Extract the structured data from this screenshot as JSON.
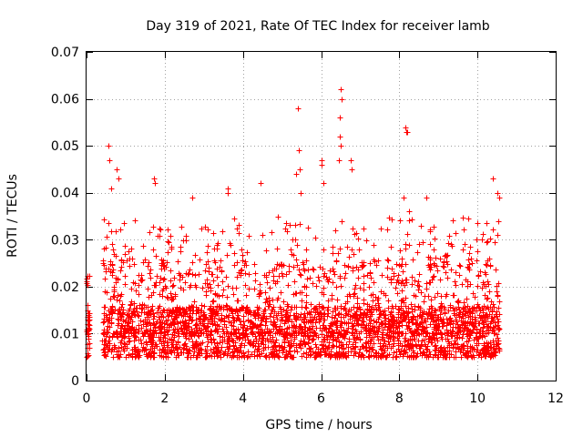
{
  "chart_data": {
    "type": "scatter",
    "title": "Day 319 of 2021, Rate Of TEC Index for receiver lamb",
    "xlabel": "GPS time / hours",
    "ylabel": "ROTI / TECUs",
    "xlim": [
      0,
      12
    ],
    "ylim": [
      0,
      0.07
    ],
    "xticks": [
      0,
      2,
      4,
      6,
      8,
      10,
      12
    ],
    "yticks": [
      0,
      0.01,
      0.02,
      0.03,
      0.04,
      0.05,
      0.06,
      0.07
    ],
    "xtick_labels": [
      "0",
      "2",
      "4",
      "6",
      "8",
      "10",
      "12"
    ],
    "ytick_labels": [
      "0",
      "0.01",
      "0.02",
      "0.03",
      "0.04",
      "0.05",
      "0.06",
      "0.07"
    ],
    "grid": true,
    "marker": "+",
    "color": "#ff0000",
    "series": [
      {
        "name": "ROTI",
        "data_coverage_hours": [
          [
            0.0,
            0.08
          ],
          [
            0.4,
            10.55
          ]
        ],
        "typical_range": [
          0.003,
          0.03
        ],
        "points": [
          [
            0.02,
            0.016
          ],
          [
            0.03,
            0.015
          ],
          [
            0.04,
            0.009
          ],
          [
            0.05,
            0.012
          ],
          [
            0.06,
            0.007
          ],
          [
            0.55,
            0.05
          ],
          [
            0.58,
            0.047
          ],
          [
            0.62,
            0.041
          ],
          [
            0.78,
            0.045
          ],
          [
            0.82,
            0.043
          ],
          [
            1.72,
            0.043
          ],
          [
            1.75,
            0.042
          ],
          [
            2.7,
            0.039
          ],
          [
            3.6,
            0.041
          ],
          [
            3.62,
            0.04
          ],
          [
            4.45,
            0.042
          ],
          [
            5.4,
            0.058
          ],
          [
            5.42,
            0.049
          ],
          [
            5.45,
            0.045
          ],
          [
            5.48,
            0.04
          ],
          [
            5.35,
            0.044
          ],
          [
            6.0,
            0.047
          ],
          [
            6.02,
            0.046
          ],
          [
            6.05,
            0.042
          ],
          [
            6.5,
            0.062
          ],
          [
            6.52,
            0.06
          ],
          [
            6.48,
            0.056
          ],
          [
            6.47,
            0.052
          ],
          [
            6.5,
            0.05
          ],
          [
            6.46,
            0.047
          ],
          [
            6.75,
            0.047
          ],
          [
            6.78,
            0.045
          ],
          [
            8.15,
            0.054
          ],
          [
            8.18,
            0.053
          ],
          [
            8.2,
            0.053
          ],
          [
            8.12,
            0.039
          ],
          [
            8.25,
            0.036
          ],
          [
            8.7,
            0.039
          ],
          [
            10.4,
            0.043
          ],
          [
            10.5,
            0.04
          ],
          [
            10.55,
            0.039
          ]
        ]
      }
    ]
  }
}
